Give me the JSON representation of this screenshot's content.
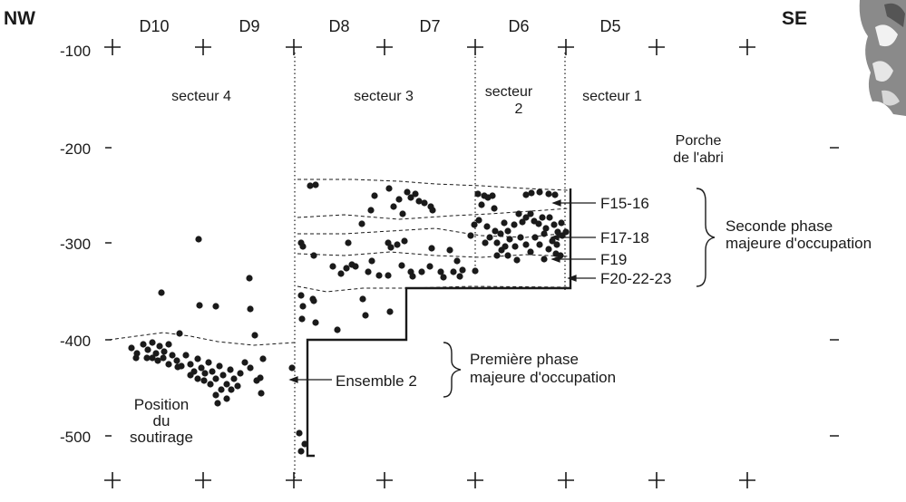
{
  "orientation": {
    "left": "NW",
    "right": "SE"
  },
  "columns": [
    "D10",
    "D9",
    "D8",
    "D7",
    "D6",
    "D5"
  ],
  "depth_labels": [
    "-100",
    "-200",
    "-300",
    "-400",
    "-500"
  ],
  "sectors": [
    {
      "id": "s4",
      "label": "secteur 4"
    },
    {
      "id": "s3",
      "label": "secteur 3"
    },
    {
      "id": "s2",
      "lines": [
        "secteur",
        "2"
      ]
    },
    {
      "id": "s1",
      "label": "secteur 1"
    }
  ],
  "porch": {
    "lines": [
      "Porche",
      "de l'abri"
    ]
  },
  "layers": [
    {
      "id": "f15",
      "label": "F15-16"
    },
    {
      "id": "f17",
      "label": "F17-18"
    },
    {
      "id": "f19",
      "label": "F19"
    },
    {
      "id": "f20",
      "label": "F20-22-23"
    }
  ],
  "ensemble": {
    "label": "Ensemble 2"
  },
  "phases": {
    "second": {
      "lines": [
        "Seconde phase",
        "majeure d'occupation"
      ]
    },
    "first": {
      "lines": [
        "Première phase",
        "majeure d'occupation"
      ]
    }
  },
  "position_label": {
    "lines": [
      "Position",
      "du",
      "soutirage"
    ]
  },
  "colors": {
    "ink": "#1a1a1a",
    "background": "#ffffff",
    "photo": "#8a8a8a"
  }
}
